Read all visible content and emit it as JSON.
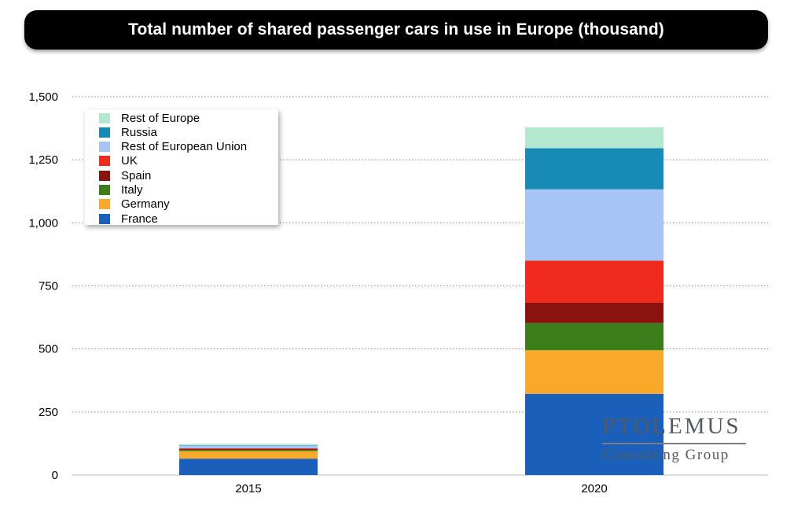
{
  "title": "Total number of shared passenger cars in use in Europe (thousand)",
  "colors": {
    "France": "#1a5fb9",
    "Germany": "#f9a92a",
    "Italy": "#3c7f1a",
    "Spain": "#8a130f",
    "UK": "#f12a1e",
    "Rest of European Union": "#a7c4f6",
    "Russia": "#178ab5",
    "Rest of Europe": "#b4e7d0"
  },
  "chart_data": {
    "type": "bar",
    "stacked": true,
    "title": "Total number of shared passenger cars in use in Europe (thousand)",
    "categories": [
      "2015",
      "2020"
    ],
    "series": [
      {
        "name": "France",
        "values": [
          65,
          322
        ]
      },
      {
        "name": "Germany",
        "values": [
          30,
          173
        ]
      },
      {
        "name": "Italy",
        "values": [
          5,
          108
        ]
      },
      {
        "name": "Spain",
        "values": [
          3,
          80
        ]
      },
      {
        "name": "UK",
        "values": [
          3,
          167
        ]
      },
      {
        "name": "Rest of European Union",
        "values": [
          10,
          283
        ]
      },
      {
        "name": "Russia",
        "values": [
          2,
          163
        ]
      },
      {
        "name": "Rest of Europe",
        "values": [
          5,
          83
        ]
      }
    ],
    "y_ticks": [
      0,
      250,
      500,
      750,
      1000,
      1250,
      1500
    ],
    "y_tick_labels": [
      "0",
      "250",
      "500",
      "750",
      "1,000",
      "1,250",
      "1,500"
    ],
    "ylim": [
      0,
      1500
    ],
    "xlabel": "",
    "ylabel": "",
    "grid": "horizontal dotted",
    "legend": {
      "position": "top-left",
      "entries": [
        "Rest of Europe",
        "Russia",
        "Rest of European Union",
        "UK",
        "Spain",
        "Italy",
        "Germany",
        "France"
      ]
    }
  },
  "logo": {
    "main": "PTOLEMUS",
    "sub": "Consulting Group"
  }
}
